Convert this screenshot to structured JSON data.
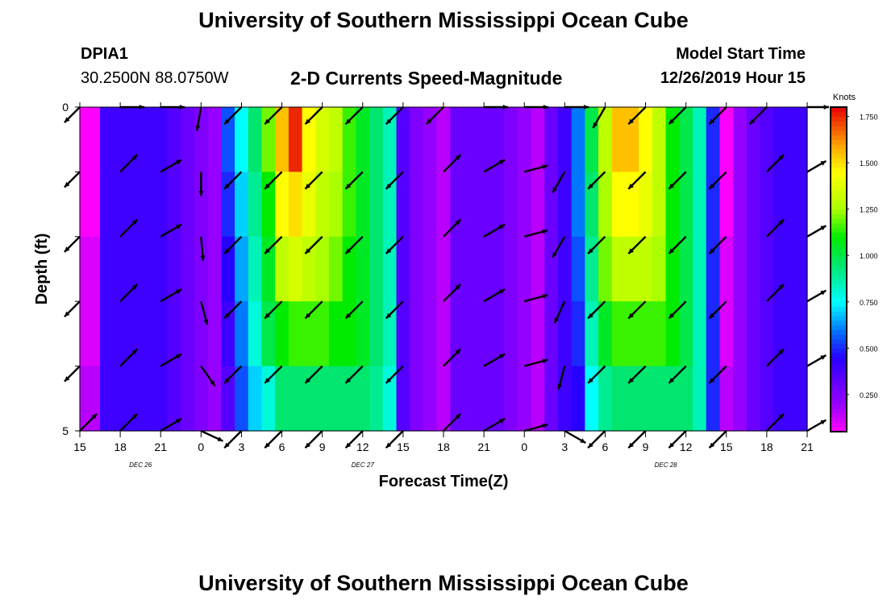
{
  "header": {
    "title": "University of Southern Mississippi Ocean Cube",
    "station_id": "DPIA1",
    "station_coords": "30.2500N 88.0750W",
    "plot_title": "2-D Currents Speed-Magnitude",
    "model_start_label": "Model Start Time",
    "model_start_value": "12/26/2019 Hour 15"
  },
  "footer": {
    "title": "University of Southern Mississippi Ocean Cube"
  },
  "chart_data": {
    "type": "heatmap",
    "title": "2-D Currents Speed-Magnitude",
    "xlabel": "Forecast Time(Z)",
    "ylabel": "Depth (ft)",
    "x_hours": [
      0,
      1,
      2,
      3,
      4,
      5,
      6,
      7,
      8,
      9,
      10,
      11,
      12,
      13,
      14,
      15,
      16,
      17,
      18,
      19,
      20,
      21,
      22,
      23,
      24,
      25,
      26,
      27,
      28,
      29,
      30,
      31,
      32,
      33,
      34,
      35,
      36,
      37,
      38,
      39,
      40,
      41,
      42,
      43,
      44,
      45,
      46,
      47,
      48,
      49,
      50,
      51,
      52,
      53,
      54
    ],
    "xlim": [
      0,
      54
    ],
    "ylim": [
      0,
      5
    ],
    "y_ticks": [
      0,
      5
    ],
    "x_ticks": [
      {
        "h": 0,
        "label": "15"
      },
      {
        "h": 3,
        "label": "18"
      },
      {
        "h": 6,
        "label": "21"
      },
      {
        "h": 9,
        "label": "0"
      },
      {
        "h": 12,
        "label": "3"
      },
      {
        "h": 15,
        "label": "6"
      },
      {
        "h": 18,
        "label": "9"
      },
      {
        "h": 21,
        "label": "12"
      },
      {
        "h": 24,
        "label": "15"
      },
      {
        "h": 27,
        "label": "18"
      },
      {
        "h": 30,
        "label": "21"
      },
      {
        "h": 33,
        "label": "0"
      },
      {
        "h": 36,
        "label": "3"
      },
      {
        "h": 39,
        "label": "6"
      },
      {
        "h": 42,
        "label": "9"
      },
      {
        "h": 45,
        "label": "12"
      },
      {
        "h": 48,
        "label": "15"
      },
      {
        "h": 51,
        "label": "18"
      },
      {
        "h": 54,
        "label": "21"
      }
    ],
    "date_labels": [
      {
        "h": 4.5,
        "label": "DEC 26"
      },
      {
        "h": 21,
        "label": "DEC 27"
      },
      {
        "h": 43.5,
        "label": "DEC 28"
      }
    ],
    "depth_rows": 5,
    "speed_knots": [
      [
        0.05,
        0.05,
        0.4,
        0.4,
        0.4,
        0.4,
        0.4,
        0.35,
        0.3,
        0.25,
        0.2,
        0.55,
        0.75,
        0.95,
        1.2,
        1.55,
        1.75,
        1.45,
        1.35,
        1.3,
        1.15,
        1.05,
        0.95,
        0.85,
        0.35,
        0.25,
        0.2,
        0.15,
        0.3,
        0.3,
        0.3,
        0.3,
        0.25,
        0.2,
        0.15,
        0.3,
        0.4,
        0.6,
        1.0,
        1.3,
        1.55,
        1.55,
        1.45,
        1.3,
        1.1,
        1.0,
        0.85,
        0.5,
        0.05,
        0.2,
        0.3,
        0.35,
        0.4,
        0.4,
        0.4
      ],
      [
        0.05,
        0.05,
        0.4,
        0.4,
        0.4,
        0.4,
        0.4,
        0.35,
        0.3,
        0.25,
        0.2,
        0.5,
        0.7,
        0.9,
        1.1,
        1.45,
        1.5,
        1.4,
        1.3,
        1.25,
        1.15,
        1.05,
        0.95,
        0.85,
        0.35,
        0.25,
        0.2,
        0.15,
        0.3,
        0.3,
        0.3,
        0.3,
        0.25,
        0.2,
        0.15,
        0.3,
        0.4,
        0.6,
        0.95,
        1.25,
        1.45,
        1.45,
        1.4,
        1.3,
        1.1,
        1.0,
        0.85,
        0.5,
        0.05,
        0.2,
        0.3,
        0.35,
        0.4,
        0.4,
        0.4
      ],
      [
        0.1,
        0.1,
        0.4,
        0.4,
        0.4,
        0.4,
        0.4,
        0.35,
        0.3,
        0.25,
        0.2,
        0.45,
        0.65,
        0.85,
        1.05,
        1.3,
        1.35,
        1.3,
        1.25,
        1.2,
        1.1,
        1.05,
        0.95,
        0.85,
        0.35,
        0.25,
        0.2,
        0.15,
        0.3,
        0.3,
        0.3,
        0.3,
        0.25,
        0.2,
        0.15,
        0.3,
        0.4,
        0.55,
        0.9,
        1.2,
        1.3,
        1.3,
        1.3,
        1.25,
        1.1,
        1.0,
        0.85,
        0.5,
        0.1,
        0.2,
        0.3,
        0.35,
        0.4,
        0.4,
        0.4
      ],
      [
        0.1,
        0.1,
        0.4,
        0.4,
        0.4,
        0.4,
        0.4,
        0.35,
        0.3,
        0.25,
        0.2,
        0.4,
        0.6,
        0.8,
        1.0,
        1.1,
        1.15,
        1.15,
        1.15,
        1.1,
        1.1,
        1.05,
        0.95,
        0.85,
        0.35,
        0.25,
        0.2,
        0.15,
        0.3,
        0.3,
        0.3,
        0.3,
        0.25,
        0.2,
        0.15,
        0.3,
        0.4,
        0.5,
        0.85,
        1.05,
        1.15,
        1.15,
        1.15,
        1.15,
        1.1,
        1.0,
        0.85,
        0.5,
        0.1,
        0.2,
        0.3,
        0.35,
        0.4,
        0.4,
        0.4
      ],
      [
        0.15,
        0.15,
        0.4,
        0.4,
        0.4,
        0.4,
        0.4,
        0.35,
        0.3,
        0.25,
        0.2,
        0.35,
        0.55,
        0.7,
        0.8,
        0.95,
        0.95,
        0.95,
        0.95,
        0.95,
        0.95,
        0.95,
        0.9,
        0.8,
        0.35,
        0.25,
        0.2,
        0.15,
        0.3,
        0.3,
        0.3,
        0.3,
        0.25,
        0.2,
        0.15,
        0.3,
        0.4,
        0.45,
        0.75,
        0.9,
        0.95,
        0.95,
        0.95,
        0.95,
        0.95,
        0.95,
        0.85,
        0.5,
        0.15,
        0.2,
        0.3,
        0.35,
        0.4,
        0.4,
        0.4
      ]
    ],
    "vector_hours": [
      0,
      3,
      6,
      9,
      12,
      15,
      18,
      21,
      24,
      27,
      30,
      33,
      36,
      39,
      42,
      45,
      48,
      51,
      54
    ],
    "vector_dir_deg": [
      [
        135,
        0,
        0,
        100,
        135,
        135,
        135,
        135,
        135,
        135,
        0,
        0,
        0,
        120,
        135,
        135,
        135,
        135,
        0
      ],
      [
        135,
        315,
        330,
        90,
        135,
        135,
        135,
        135,
        135,
        315,
        330,
        345,
        120,
        135,
        135,
        135,
        135,
        315,
        330
      ],
      [
        135,
        315,
        330,
        85,
        135,
        135,
        135,
        135,
        135,
        315,
        330,
        345,
        120,
        135,
        135,
        135,
        135,
        315,
        330
      ],
      [
        135,
        315,
        330,
        75,
        135,
        135,
        135,
        135,
        135,
        315,
        330,
        345,
        115,
        135,
        135,
        135,
        135,
        315,
        330
      ],
      [
        135,
        315,
        330,
        55,
        135,
        135,
        135,
        135,
        135,
        315,
        330,
        345,
        105,
        135,
        135,
        135,
        135,
        315,
        330
      ],
      [
        315,
        315,
        330,
        25,
        135,
        135,
        135,
        135,
        135,
        315,
        330,
        345,
        30,
        135,
        135,
        135,
        135,
        315,
        330
      ]
    ],
    "legend": {
      "title": "Knots",
      "ticks": [
        0.25,
        0.5,
        0.75,
        1.0,
        1.25,
        1.5,
        1.75
      ],
      "tick_labels": [
        "0.250",
        "0.500",
        "0.750",
        "1.000",
        "1.250",
        "1.500",
        "1.750"
      ],
      "range": [
        0.05,
        1.8
      ],
      "position": "right"
    }
  }
}
